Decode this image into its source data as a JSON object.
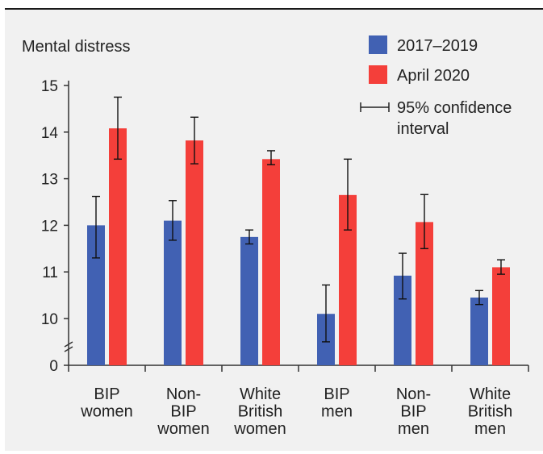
{
  "chart_data": {
    "type": "bar",
    "ylabel": "Mental distress",
    "yticks": [
      "0",
      "10",
      "11",
      "12",
      "13",
      "14",
      "15"
    ],
    "ylim": [
      9.7,
      15.1
    ],
    "axis_break": true,
    "grid": false,
    "legend_position": "top-right",
    "categories": [
      [
        "BIP",
        "women"
      ],
      [
        "Non-",
        "BIP",
        "women"
      ],
      [
        "White",
        "British",
        "women"
      ],
      [
        "BIP",
        "men"
      ],
      [
        "Non-",
        "BIP",
        "men"
      ],
      [
        "White",
        "British",
        "men"
      ]
    ],
    "series": [
      {
        "name": "2017–2019",
        "color": "#4161b3",
        "values": [
          12.0,
          12.1,
          11.75,
          10.1,
          10.92,
          10.45
        ],
        "ci_low": [
          11.3,
          11.68,
          11.6,
          9.5,
          10.42,
          10.3
        ],
        "ci_high": [
          12.62,
          12.53,
          11.9,
          10.72,
          11.4,
          10.6
        ]
      },
      {
        "name": "April 2020",
        "color": "#f43f3a",
        "values": [
          14.08,
          13.82,
          13.42,
          12.65,
          12.07,
          11.1
        ],
        "ci_low": [
          13.42,
          13.32,
          13.3,
          11.9,
          11.5,
          10.95
        ],
        "ci_high": [
          14.75,
          14.32,
          13.6,
          13.42,
          12.66,
          11.26
        ]
      }
    ],
    "legend": {
      "series_1": "2017–2019",
      "series_2": "April 2020",
      "ci_line1": "95% confidence",
      "ci_line2": "interval"
    }
  }
}
